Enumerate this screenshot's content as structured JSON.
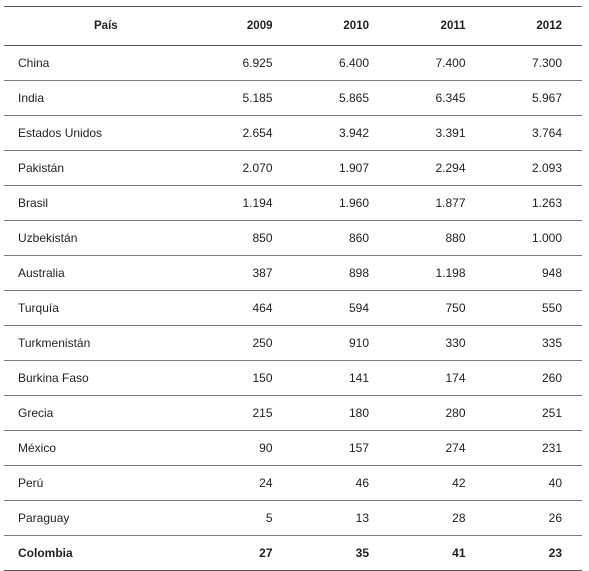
{
  "table": {
    "headers": [
      "País",
      "2009",
      "2010",
      "2011",
      "2012"
    ],
    "rows": [
      {
        "country": "China",
        "values": [
          "6.925",
          "6.400",
          "7.400",
          "7.300"
        ]
      },
      {
        "country": "India",
        "values": [
          "5.185",
          "5.865",
          "6.345",
          "5.967"
        ]
      },
      {
        "country": "Estados Unidos",
        "values": [
          "2.654",
          "3.942",
          "3.391",
          "3.764"
        ]
      },
      {
        "country": "Pakistán",
        "values": [
          "2.070",
          "1.907",
          "2.294",
          "2.093"
        ]
      },
      {
        "country": "Brasil",
        "values": [
          "1.194",
          "1.960",
          "1.877",
          "1.263"
        ]
      },
      {
        "country": "Uzbekistán",
        "values": [
          "850",
          "860",
          "880",
          "1.000"
        ]
      },
      {
        "country": "Australia",
        "values": [
          "387",
          "898",
          "1.198",
          "948"
        ]
      },
      {
        "country": "Turquía",
        "values": [
          "464",
          "594",
          "750",
          "550"
        ]
      },
      {
        "country": "Turkmenistán",
        "values": [
          "250",
          "910",
          "330",
          "335"
        ]
      },
      {
        "country": "Burkina Faso",
        "values": [
          "150",
          "141",
          "174",
          "260"
        ]
      },
      {
        "country": "Grecia",
        "values": [
          "215",
          "180",
          "280",
          "251"
        ]
      },
      {
        "country": "México",
        "values": [
          "90",
          "157",
          "274",
          "231"
        ]
      },
      {
        "country": "Perú",
        "values": [
          "24",
          "46",
          "42",
          "40"
        ]
      },
      {
        "country": "Paraguay",
        "values": [
          "5",
          "13",
          "28",
          "26"
        ]
      }
    ],
    "total": {
      "country": "Colombia",
      "values": [
        "27",
        "35",
        "41",
        "23"
      ]
    }
  }
}
